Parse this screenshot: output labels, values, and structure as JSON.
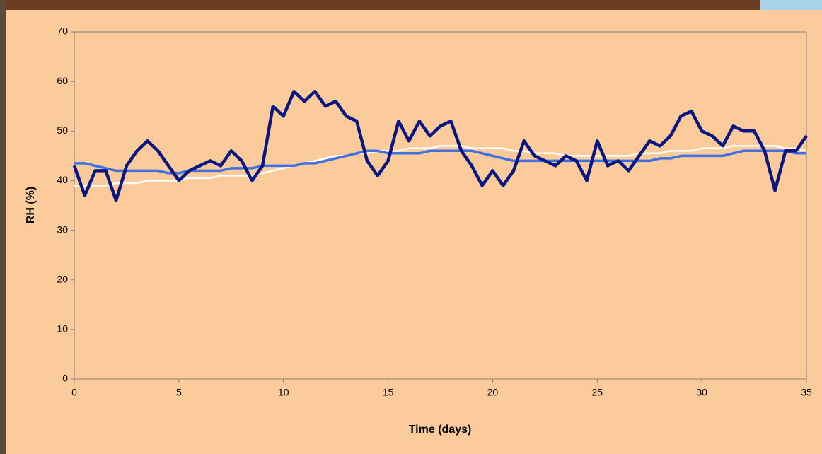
{
  "chart_data": {
    "type": "line",
    "ylabel": "RH (%)",
    "xlabel": "Time (days)",
    "x": [
      0,
      0.5,
      1,
      1.5,
      2,
      2.5,
      3,
      3.5,
      4,
      4.5,
      5,
      5.5,
      6,
      6.5,
      7,
      7.5,
      8,
      8.5,
      9,
      9.5,
      10,
      10.5,
      11,
      11.5,
      12,
      12.5,
      13,
      13.5,
      14,
      14.5,
      15,
      15.5,
      16,
      16.5,
      17,
      17.5,
      18,
      18.5,
      19,
      19.5,
      20,
      20.5,
      21,
      21.5,
      22,
      22.5,
      23,
      23.5,
      24,
      24.5,
      25,
      25.5,
      26,
      26.5,
      27,
      27.5,
      28,
      28.5,
      29,
      29.5,
      30,
      30.5,
      31,
      31.5,
      32,
      32.5,
      33,
      33.5,
      34,
      34.5,
      35
    ],
    "series": [
      {
        "color": "#ffffff",
        "values": [
          39,
          39,
          39,
          39,
          39.5,
          39.5,
          39.5,
          40,
          40,
          40,
          40,
          40.5,
          40.5,
          40.5,
          41,
          41,
          41,
          41,
          41.5,
          42,
          42.5,
          43,
          43.5,
          44,
          44.5,
          45,
          45,
          45.5,
          45.5,
          46,
          46,
          46,
          46.5,
          46.5,
          46.5,
          47,
          47,
          47,
          46.5,
          46.5,
          46.5,
          46.5,
          46,
          46,
          45.5,
          45.5,
          45.5,
          45,
          45,
          45,
          45,
          45,
          45,
          45,
          45.5,
          45.5,
          45.5,
          46,
          46,
          46,
          46.5,
          46.5,
          46.5,
          47,
          47,
          47,
          47,
          47,
          46.5,
          46.5,
          46
        ]
      },
      {
        "color": "#3f6fe0",
        "values": [
          43.5,
          43.5,
          43,
          42.5,
          42,
          42,
          42,
          42,
          42,
          41.5,
          41.5,
          42,
          42,
          42,
          42,
          42.5,
          42.5,
          42.5,
          43,
          43,
          43,
          43,
          43.5,
          43.5,
          44,
          44.5,
          45,
          45.5,
          46,
          46,
          45.5,
          45.5,
          45.5,
          45.5,
          46,
          46,
          46,
          46,
          46,
          45.5,
          45,
          44.5,
          44,
          44,
          44,
          44,
          44,
          44,
          44,
          44,
          44,
          44,
          44,
          44,
          44,
          44,
          44.5,
          44.5,
          45,
          45,
          45,
          45,
          45,
          45.5,
          46,
          46,
          46,
          46,
          46,
          45.5,
          45.5
        ]
      },
      {
        "color": "#0a1680",
        "values": [
          43,
          37,
          42,
          42,
          36,
          43,
          46,
          48,
          46,
          43,
          40,
          42,
          43,
          44,
          43,
          46,
          44,
          40,
          43,
          55,
          53,
          58,
          56,
          58,
          55,
          56,
          53,
          52,
          44,
          41,
          44,
          52,
          48,
          52,
          49,
          51,
          52,
          46,
          43,
          39,
          42,
          39,
          42,
          48,
          45,
          44,
          43,
          45,
          44,
          40,
          48,
          43,
          44,
          42,
          45,
          48,
          47,
          49,
          53,
          54,
          50,
          49,
          47,
          51,
          50,
          50,
          46,
          38,
          46,
          46,
          49
        ]
      }
    ],
    "xlim": [
      0,
      35
    ],
    "xticks": [
      0,
      5,
      10,
      15,
      20,
      25,
      30,
      35
    ],
    "ylim": [
      0,
      70
    ],
    "yticks": [
      0,
      10,
      20,
      30,
      40,
      50,
      60,
      70
    ]
  }
}
